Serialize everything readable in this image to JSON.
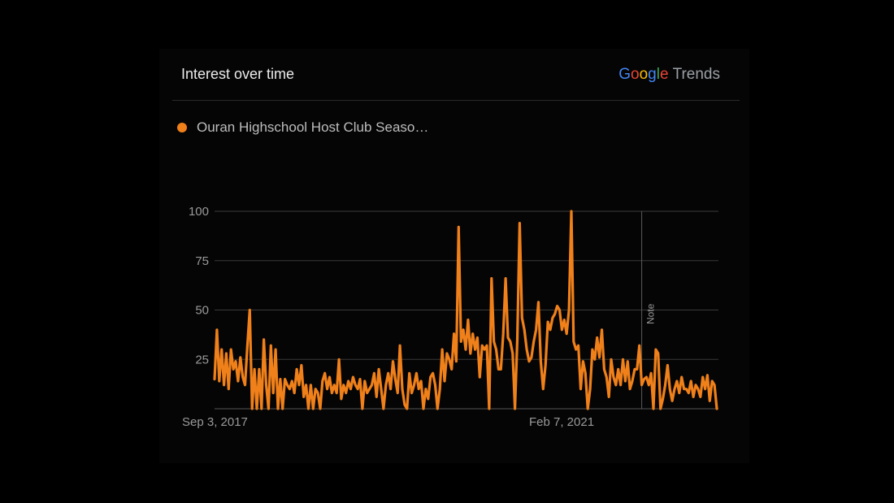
{
  "header": {
    "title": "Interest over time",
    "brand": {
      "letters": [
        "G",
        "o",
        "o",
        "g",
        "l",
        "e"
      ],
      "suffix": "Trends"
    }
  },
  "colors": {
    "series": "#f0801a",
    "grid": "#3a3a3a",
    "axis_text": "#9a9a9a",
    "note_line": "#5a5a5a"
  },
  "chart_data": {
    "type": "line",
    "title": "Interest over time",
    "xlabel": "",
    "ylabel": "",
    "ylim": [
      0,
      100
    ],
    "yticks": [
      25,
      50,
      75,
      100
    ],
    "xtick_labels": [
      "Sep 3, 2017",
      "Feb 7, 2021"
    ],
    "note": {
      "label": "Note",
      "index": 182
    },
    "grid": true,
    "legend": "top-left",
    "series": [
      {
        "name": "Ouran Highschool Host Club Seaso…",
        "values": [
          15,
          40,
          14,
          30,
          12,
          28,
          10,
          30,
          20,
          24,
          14,
          26,
          16,
          12,
          32,
          50,
          0,
          20,
          0,
          20,
          0,
          35,
          12,
          0,
          32,
          8,
          30,
          0,
          15,
          0,
          15,
          12,
          10,
          14,
          8,
          20,
          12,
          22,
          6,
          12,
          0,
          12,
          0,
          10,
          8,
          0,
          14,
          18,
          10,
          16,
          8,
          12,
          8,
          25,
          5,
          12,
          8,
          14,
          10,
          16,
          12,
          10,
          15,
          0,
          14,
          8,
          10,
          12,
          18,
          6,
          20,
          10,
          0,
          12,
          18,
          10,
          24,
          15,
          8,
          32,
          10,
          2,
          0,
          18,
          8,
          12,
          18,
          10,
          14,
          0,
          10,
          5,
          16,
          18,
          12,
          0,
          10,
          30,
          14,
          28,
          25,
          20,
          38,
          24,
          92,
          34,
          40,
          30,
          45,
          28,
          38,
          30,
          36,
          16,
          32,
          30,
          32,
          0,
          66,
          34,
          30,
          20,
          20,
          38,
          66,
          36,
          34,
          28,
          0,
          35,
          94,
          46,
          40,
          30,
          24,
          26,
          34,
          40,
          54,
          24,
          10,
          22,
          44,
          40,
          46,
          48,
          52,
          50,
          40,
          45,
          38,
          50,
          100,
          34,
          30,
          32,
          10,
          24,
          18,
          0,
          10,
          30,
          25,
          36,
          26,
          40,
          20,
          16,
          6,
          25,
          16,
          12,
          20,
          12,
          25,
          14,
          24,
          10,
          14,
          20,
          20,
          32,
          12,
          15,
          16,
          12,
          18,
          0,
          30,
          28,
          0,
          5,
          12,
          22,
          10,
          4,
          10,
          14,
          8,
          16,
          10,
          10,
          8,
          14,
          6,
          12,
          10,
          6,
          16,
          10,
          17,
          4,
          14,
          12,
          0
        ],
        "color": "#f0801a"
      }
    ]
  }
}
